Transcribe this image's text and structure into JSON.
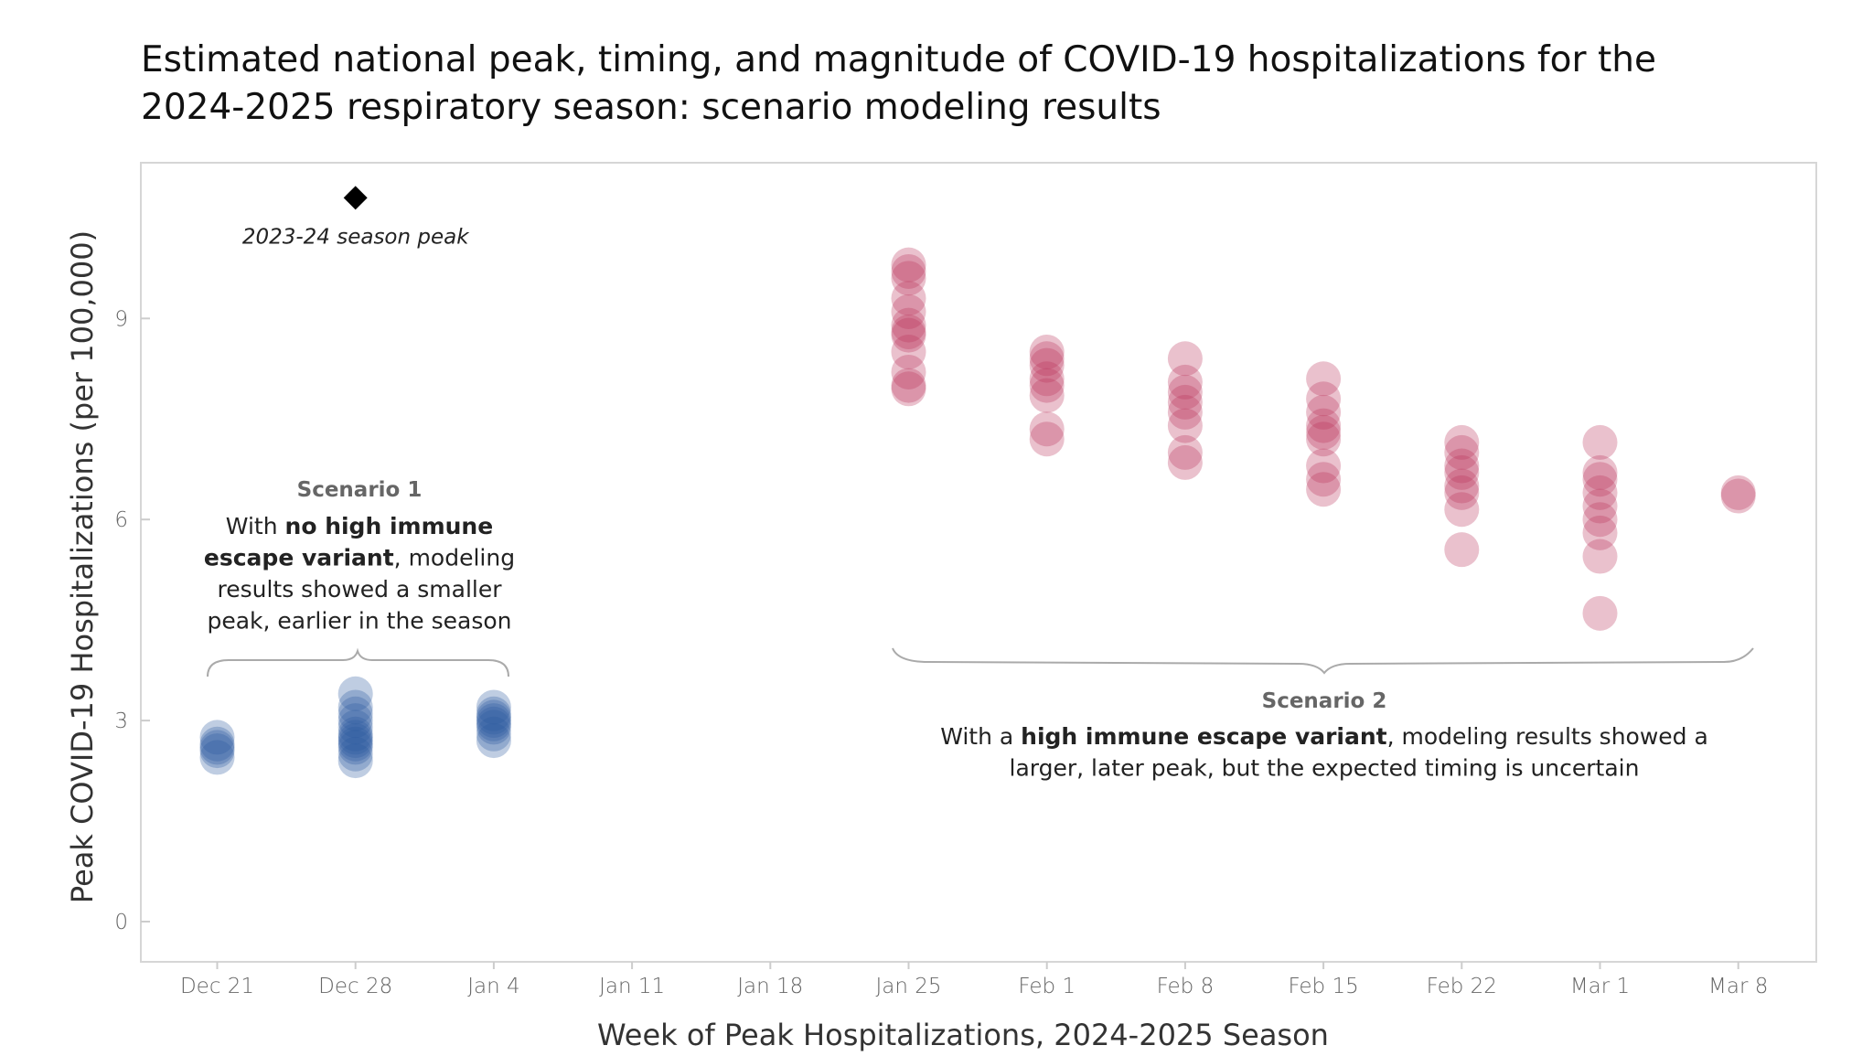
{
  "chart_data": {
    "type": "scatter",
    "title": "Estimated national peak, timing, and magnitude of COVID-19 hospitalizations for the 2024-2025 respiratory season: scenario modeling results",
    "title_lines": [
      "Estimated national peak, timing, and magnitude of COVID-19 hospitalizations for the",
      "2024-2025 respiratory season: scenario modeling results"
    ],
    "xlabel": "Week of Peak Hospitalizations, 2024-2025 Season",
    "ylabel": "Peak COVID-19 Hospitalizations (per 100,000)",
    "categories": [
      "Dec 21",
      "Dec 28",
      "Jan 4",
      "Jan 11",
      "Jan 18",
      "Jan 25",
      "Feb 1",
      "Feb 8",
      "Feb 15",
      "Feb 22",
      "Mar 1",
      "Mar 8"
    ],
    "yticks": [
      0,
      3,
      6,
      9
    ],
    "ylim": [
      -0.4,
      11.3
    ],
    "grid": false,
    "series": [
      {
        "scenario": "Scenario 1",
        "color": "#2b5a9e",
        "points": [
          {
            "x": "Dec 21",
            "y": [
              2.45,
              2.55,
              2.6,
              2.65,
              2.75
            ]
          },
          {
            "x": "Dec 28",
            "y": [
              2.4,
              2.5,
              2.6,
              2.65,
              2.7,
              2.75,
              2.8,
              2.9,
              3.0,
              3.1,
              3.2,
              3.4
            ]
          },
          {
            "x": "Jan 4",
            "y": [
              2.7,
              2.8,
              2.9,
              2.95,
              3.0,
              3.05,
              3.1,
              3.2
            ]
          }
        ]
      },
      {
        "scenario": "Scenario 2",
        "color": "#b8325a",
        "points": [
          {
            "x": "Jan 25",
            "y": [
              7.95,
              8.0,
              8.2,
              8.5,
              8.75,
              8.8,
              8.9,
              9.1,
              9.3,
              9.6,
              9.7,
              9.8
            ]
          },
          {
            "x": "Feb 1",
            "y": [
              7.2,
              7.35,
              7.85,
              8.0,
              8.1,
              8.3,
              8.4,
              8.5
            ]
          },
          {
            "x": "Feb 8",
            "y": [
              6.85,
              7.0,
              7.4,
              7.6,
              7.75,
              7.9,
              8.05,
              8.4
            ]
          },
          {
            "x": "Feb 15",
            "y": [
              6.45,
              6.6,
              6.8,
              7.2,
              7.3,
              7.4,
              7.6,
              7.8,
              8.1
            ]
          },
          {
            "x": "Feb 22",
            "y": [
              5.55,
              6.15,
              6.4,
              6.5,
              6.7,
              6.8,
              7.0,
              7.15
            ]
          },
          {
            "x": "Mar 1",
            "y": [
              4.6,
              5.45,
              5.8,
              6.0,
              6.2,
              6.4,
              6.6,
              6.7,
              7.15
            ]
          },
          {
            "x": "Mar 8",
            "y": [
              6.35,
              6.4
            ]
          }
        ]
      }
    ],
    "reference": {
      "label": "2023-24 season peak",
      "x": "Dec 28",
      "y": 10.8,
      "marker": "diamond",
      "color": "#000000"
    },
    "annotations": {
      "scenario1": {
        "heading": "Scenario 1",
        "lines": [
          [
            {
              "t": "With ",
              "b": false
            },
            {
              "t": "no high immune",
              "b": true
            }
          ],
          [
            {
              "t": "escape variant",
              "b": true
            },
            {
              "t": ", modeling",
              "b": false
            }
          ],
          [
            {
              "t": "results showed a smaller",
              "b": false
            }
          ],
          [
            {
              "t": "peak, earlier in the season",
              "b": false
            }
          ]
        ]
      },
      "scenario2": {
        "heading": "Scenario 2",
        "lines": [
          [
            {
              "t": "With a ",
              "b": false
            },
            {
              "t": "high immune escape variant",
              "b": true
            },
            {
              "t": ", modeling results showed a",
              "b": false
            }
          ],
          [
            {
              "t": "larger, later peak, but the expected timing is uncertain",
              "b": false
            }
          ]
        ]
      }
    }
  }
}
